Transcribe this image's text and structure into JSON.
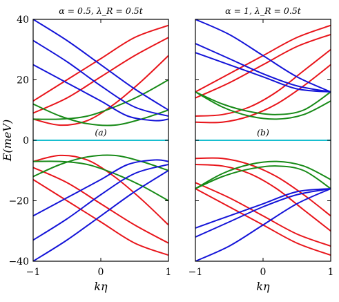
{
  "chart_data": [
    {
      "type": "line",
      "panel_tag": "(a)",
      "title": "α = 0.5, λ_R = 0.5t",
      "xlabel": "kη",
      "ylabel": "E(meV)",
      "xlim": [
        -1,
        1
      ],
      "ylim": [
        -40,
        40
      ],
      "xticks": [
        "−1",
        "0",
        "1"
      ],
      "yticks": [
        "−40",
        "−20",
        "0",
        "20",
        "40"
      ],
      "grid": false,
      "colors": {
        "red": "#e8141a",
        "green": "#178a17",
        "blue": "#1414d8",
        "cyan": "#17becf"
      },
      "series": [
        {
          "color": "red",
          "x": [
            -1,
            -0.6,
            -0.2,
            0.2,
            0.6,
            1
          ],
          "y": [
            7,
            5,
            6.5,
            12,
            19.5,
            28
          ]
        },
        {
          "color": "red",
          "x": [
            -1,
            -0.5,
            0,
            0.5,
            1
          ],
          "y": [
            9,
            14,
            21,
            28,
            34
          ]
        },
        {
          "color": "red",
          "x": [
            -1,
            -0.5,
            0,
            0.5,
            1
          ],
          "y": [
            13,
            20,
            27,
            34,
            38
          ]
        },
        {
          "color": "green",
          "x": [
            -1,
            -0.6,
            -0.2,
            0.2,
            0.6,
            1
          ],
          "y": [
            12,
            8,
            5.5,
            5,
            7,
            10
          ]
        },
        {
          "color": "green",
          "x": [
            -1,
            -0.6,
            -0.2,
            0.2,
            0.6,
            1
          ],
          "y": [
            7,
            7,
            8,
            11,
            15,
            20
          ]
        },
        {
          "color": "blue",
          "x": [
            -1,
            -0.5,
            0,
            0.5,
            1
          ],
          "y": [
            40,
            33,
            25,
            17,
            10
          ]
        },
        {
          "color": "blue",
          "x": [
            -1,
            -0.5,
            0,
            0.5,
            1
          ],
          "y": [
            33,
            26,
            18,
            11,
            8
          ]
        },
        {
          "color": "blue",
          "x": [
            -1,
            -0.5,
            0,
            0.4,
            0.8,
            1
          ],
          "y": [
            25,
            19,
            13,
            8,
            6.5,
            7
          ]
        },
        {
          "color": "cyan",
          "x": [
            -1,
            1
          ],
          "y": [
            0,
            0
          ]
        },
        {
          "color": "red",
          "x": [
            -1,
            -0.6,
            -0.2,
            0.2,
            0.6,
            1
          ],
          "y": [
            -7,
            -5,
            -6.5,
            -12,
            -19.5,
            -28
          ]
        },
        {
          "color": "red",
          "x": [
            -1,
            -0.5,
            0,
            0.5,
            1
          ],
          "y": [
            -9,
            -14,
            -21,
            -28,
            -34
          ]
        },
        {
          "color": "red",
          "x": [
            -1,
            -0.5,
            0,
            0.5,
            1
          ],
          "y": [
            -13,
            -20,
            -27,
            -34,
            -38
          ]
        },
        {
          "color": "green",
          "x": [
            -1,
            -0.6,
            -0.2,
            0.2,
            0.6,
            1
          ],
          "y": [
            -12,
            -8,
            -5.5,
            -5,
            -7,
            -10
          ]
        },
        {
          "color": "green",
          "x": [
            -1,
            -0.6,
            -0.2,
            0.2,
            0.6,
            1
          ],
          "y": [
            -7,
            -7,
            -8,
            -11,
            -15,
            -20
          ]
        },
        {
          "color": "blue",
          "x": [
            -1,
            -0.5,
            0,
            0.5,
            1
          ],
          "y": [
            -40,
            -33,
            -25,
            -17,
            -10
          ]
        },
        {
          "color": "blue",
          "x": [
            -1,
            -0.5,
            0,
            0.5,
            1
          ],
          "y": [
            -33,
            -26,
            -18,
            -11,
            -8
          ]
        },
        {
          "color": "blue",
          "x": [
            -1,
            -0.5,
            0,
            0.4,
            0.8,
            1
          ],
          "y": [
            -25,
            -19,
            -13,
            -8,
            -6.5,
            -7
          ]
        }
      ]
    },
    {
      "type": "line",
      "panel_tag": "(b)",
      "title": "α = 1, λ_R = 0.5t",
      "xlabel": "kη",
      "ylabel": "",
      "xlim": [
        -1,
        1
      ],
      "ylim": [
        -40,
        40
      ],
      "xticks": [
        "−1",
        "0",
        "1"
      ],
      "yticks": [],
      "grid": false,
      "colors": {
        "red": "#e8141a",
        "green": "#178a17",
        "blue": "#1414d8",
        "cyan": "#17becf"
      },
      "series": [
        {
          "color": "red",
          "x": [
            -1,
            -0.6,
            -0.2,
            0.2,
            0.6,
            1
          ],
          "y": [
            6,
            6,
            8,
            12,
            18,
            25
          ]
        },
        {
          "color": "red",
          "x": [
            -1,
            -0.6,
            -0.2,
            0.2,
            0.6,
            1
          ],
          "y": [
            8,
            8.5,
            11,
            16,
            23,
            30
          ]
        },
        {
          "color": "red",
          "x": [
            -1,
            -0.5,
            0,
            0.5,
            1
          ],
          "y": [
            14,
            19,
            25,
            31,
            35
          ]
        },
        {
          "color": "red",
          "x": [
            -1,
            -0.5,
            0,
            0.5,
            1
          ],
          "y": [
            16,
            22,
            28,
            34,
            38
          ]
        },
        {
          "color": "green",
          "x": [
            -1,
            -0.6,
            -0.2,
            0.2,
            0.6,
            1
          ],
          "y": [
            16,
            11,
            8,
            7,
            8.5,
            13
          ]
        },
        {
          "color": "green",
          "x": [
            -1,
            -0.6,
            -0.2,
            0.2,
            0.6,
            1
          ],
          "y": [
            16,
            12,
            9.5,
            8.5,
            10,
            16
          ]
        },
        {
          "color": "blue",
          "x": [
            -1,
            -0.5,
            0,
            0.5,
            1
          ],
          "y": [
            40,
            35,
            28,
            21,
            16
          ]
        },
        {
          "color": "blue",
          "x": [
            -1,
            -0.5,
            0,
            0.5,
            1
          ],
          "y": [
            32,
            27,
            22,
            18,
            16
          ]
        },
        {
          "color": "blue",
          "x": [
            -1,
            -0.5,
            0,
            0.5,
            1
          ],
          "y": [
            29,
            25,
            21,
            17,
            16
          ]
        },
        {
          "color": "cyan",
          "x": [
            -1,
            1
          ],
          "y": [
            0,
            0
          ]
        },
        {
          "color": "red",
          "x": [
            -1,
            -0.6,
            -0.2,
            0.2,
            0.6,
            1
          ],
          "y": [
            -6,
            -6,
            -8,
            -12,
            -18,
            -25
          ]
        },
        {
          "color": "red",
          "x": [
            -1,
            -0.6,
            -0.2,
            0.2,
            0.6,
            1
          ],
          "y": [
            -8,
            -8.5,
            -11,
            -16,
            -23,
            -30
          ]
        },
        {
          "color": "red",
          "x": [
            -1,
            -0.5,
            0,
            0.5,
            1
          ],
          "y": [
            -14,
            -19,
            -25,
            -31,
            -35
          ]
        },
        {
          "color": "red",
          "x": [
            -1,
            -0.5,
            0,
            0.5,
            1
          ],
          "y": [
            -16,
            -22,
            -28,
            -34,
            -38
          ]
        },
        {
          "color": "green",
          "x": [
            -1,
            -0.6,
            -0.2,
            0.2,
            0.6,
            1
          ],
          "y": [
            -16,
            -11,
            -8,
            -7,
            -8.5,
            -13
          ]
        },
        {
          "color": "green",
          "x": [
            -1,
            -0.6,
            -0.2,
            0.2,
            0.6,
            1
          ],
          "y": [
            -16,
            -12,
            -9.5,
            -8.5,
            -10,
            -16
          ]
        },
        {
          "color": "blue",
          "x": [
            -1,
            -0.5,
            0,
            0.5,
            1
          ],
          "y": [
            -40,
            -35,
            -28,
            -21,
            -16
          ]
        },
        {
          "color": "blue",
          "x": [
            -1,
            -0.5,
            0,
            0.5,
            1
          ],
          "y": [
            -32,
            -27,
            -22,
            -18,
            -16
          ]
        },
        {
          "color": "blue",
          "x": [
            -1,
            -0.5,
            0,
            0.5,
            1
          ],
          "y": [
            -29,
            -25,
            -21,
            -17,
            -16
          ]
        }
      ]
    }
  ]
}
